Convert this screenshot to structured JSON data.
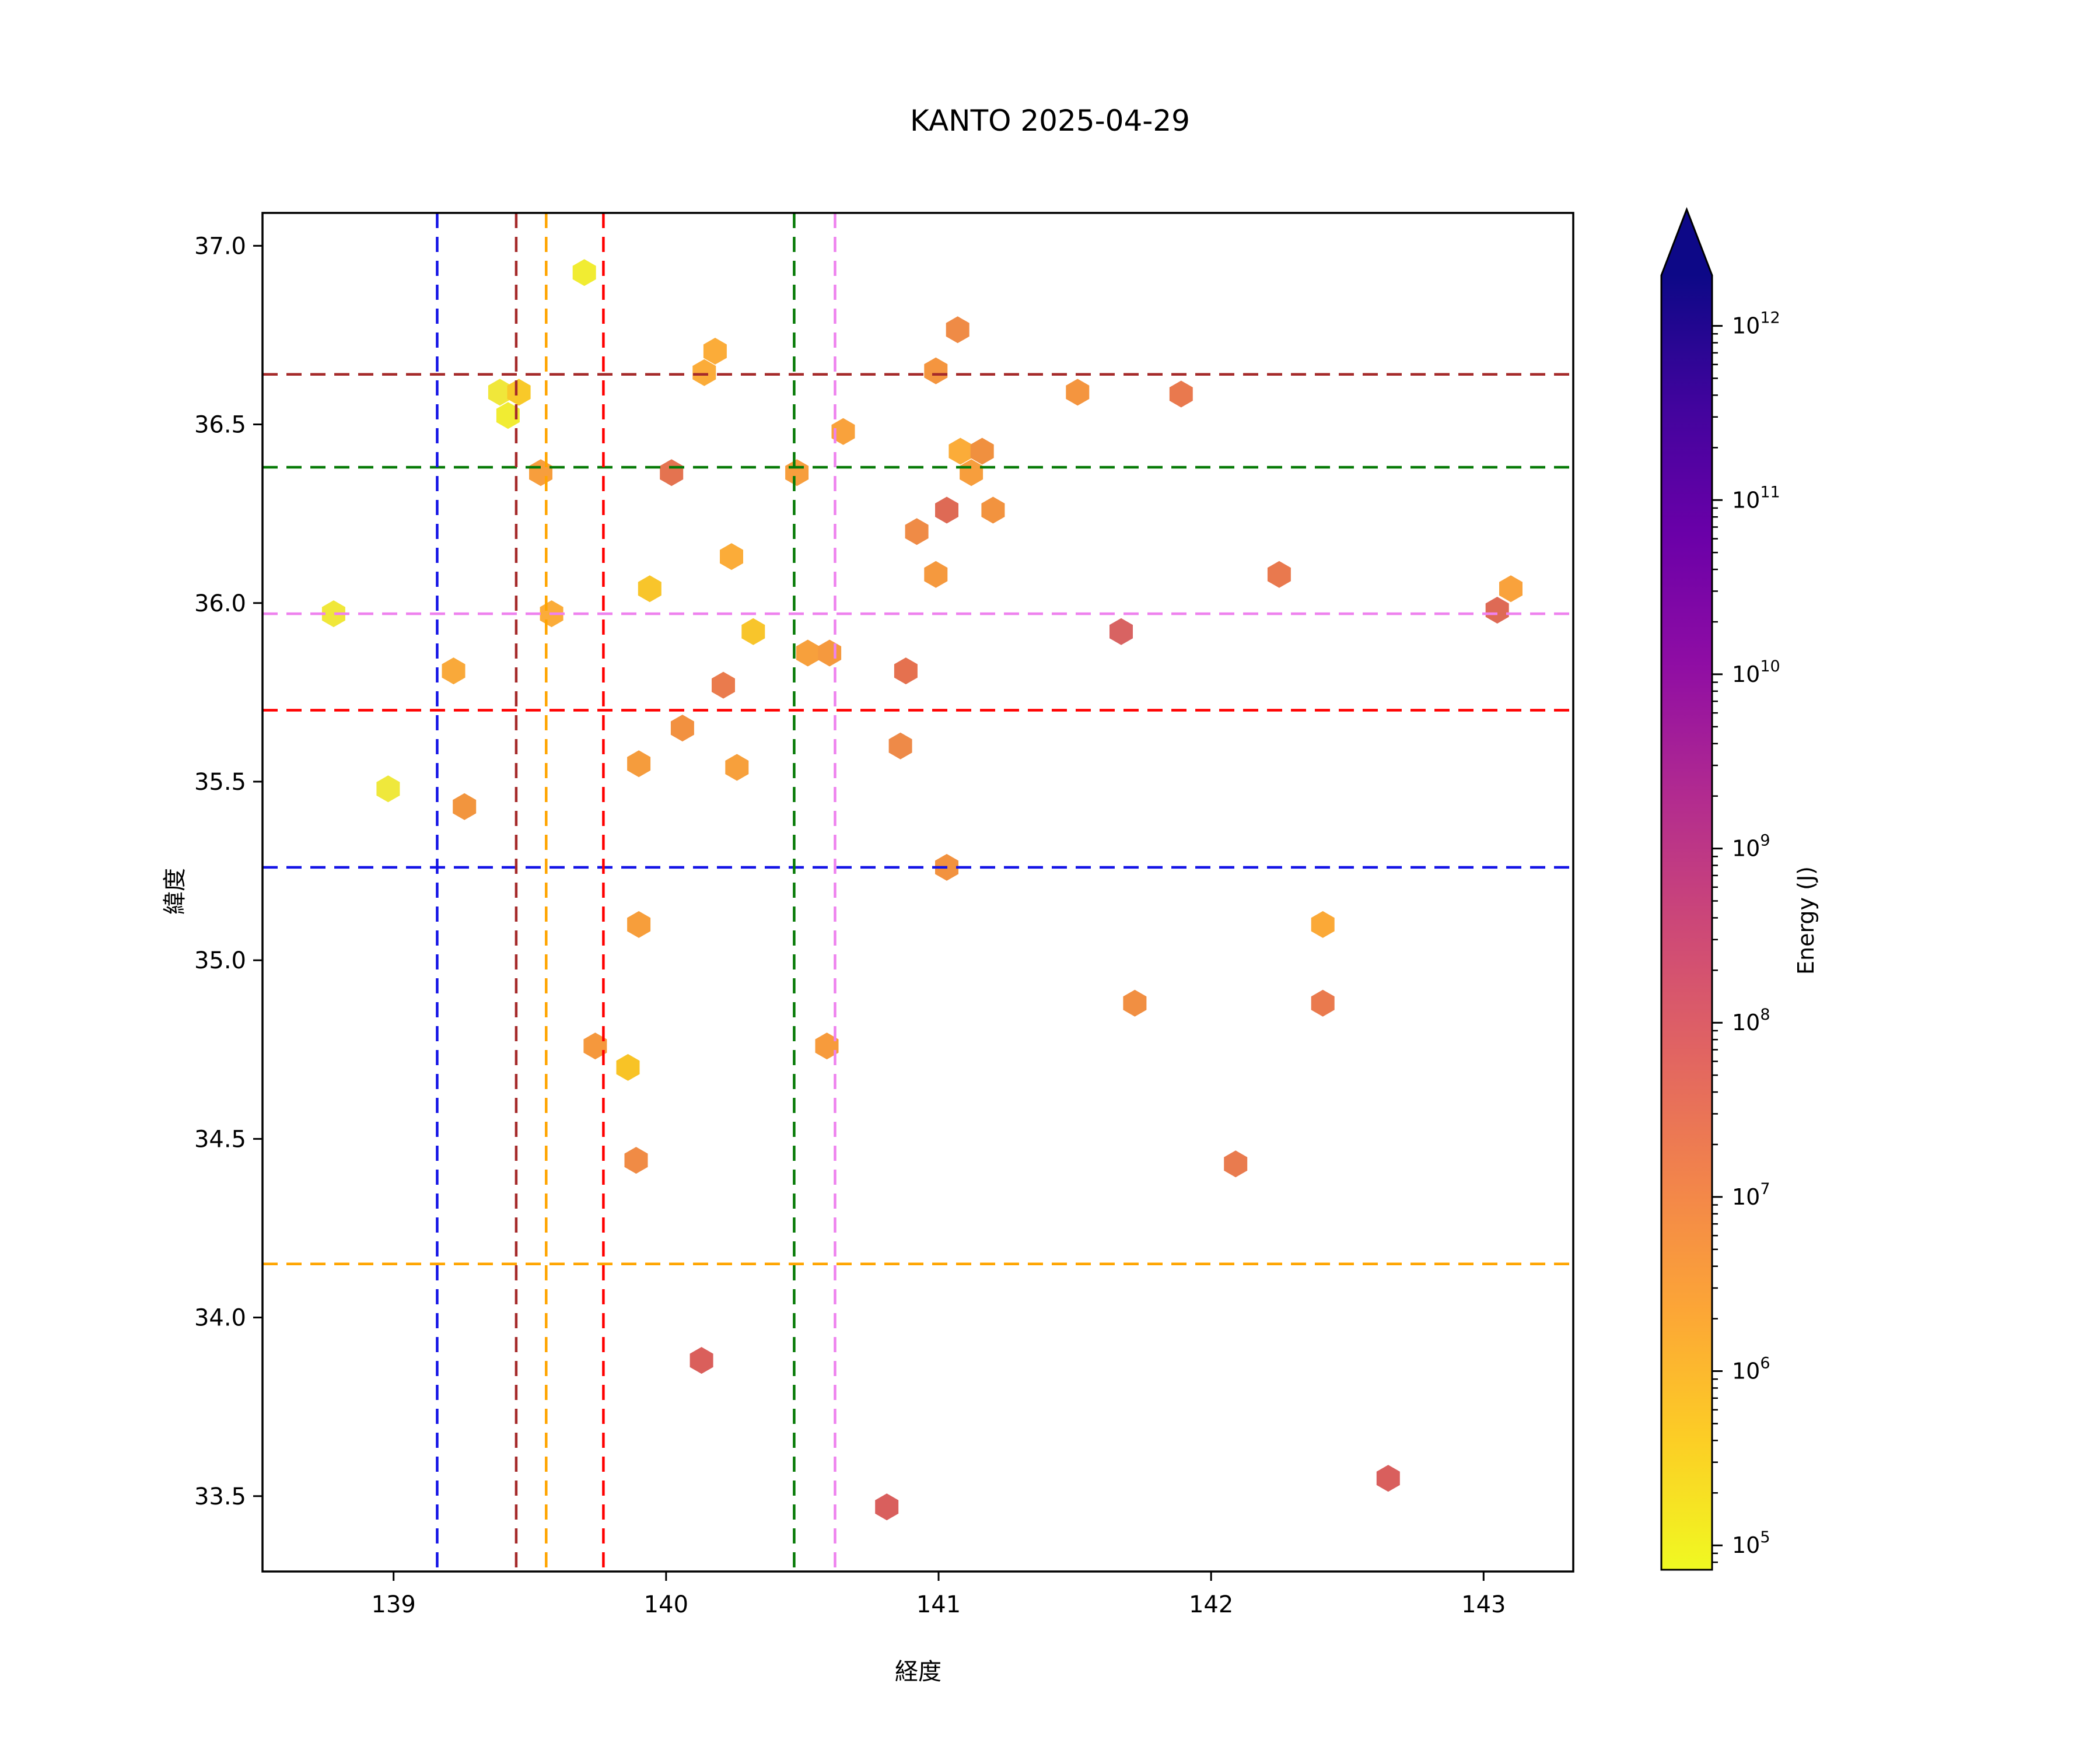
{
  "chart_data": {
    "type": "scatter",
    "marker": "hexagon",
    "title": "KANTO 2025-04-29",
    "xlabel": "経度",
    "ylabel": "緯度",
    "xlim": [
      138.519,
      143.329
    ],
    "ylim": [
      33.289,
      37.092
    ],
    "xticks": [
      139,
      140,
      141,
      142,
      143
    ],
    "yticks": [
      33.5,
      34.0,
      34.5,
      35.0,
      35.5,
      36.0,
      36.5,
      37.0
    ],
    "grid": false,
    "legend": "none",
    "colorbar": {
      "label": "Energy (J)",
      "scale": "log",
      "tick_exponents": [
        5,
        6,
        7,
        8,
        9,
        10,
        11,
        12
      ],
      "log_min": 4.86,
      "log_max": 12.29,
      "extend": "max",
      "over_color": "#0D0887",
      "gradient_bottom_to_top": [
        "#F0F921",
        "#FCCE25",
        "#FCA636",
        "#F2844B",
        "#E16462",
        "#CC4778",
        "#B12A90",
        "#8F0DA4",
        "#6A00A8",
        "#41049D",
        "#0D0887"
      ]
    },
    "reference_lines": {
      "horizontal": [
        {
          "lat": 36.64,
          "color": "#A52A2A"
        },
        {
          "lat": 36.38,
          "color": "#067A06"
        },
        {
          "lat": 35.97,
          "color": "#EE82EE"
        },
        {
          "lat": 35.7,
          "color": "#FF0000"
        },
        {
          "lat": 35.26,
          "color": "#1414E6"
        },
        {
          "lat": 34.15,
          "color": "#FFA500"
        }
      ],
      "vertical": [
        {
          "lon": 139.16,
          "color": "#1414E6"
        },
        {
          "lon": 139.45,
          "color": "#A52A2A"
        },
        {
          "lon": 139.56,
          "color": "#FFA500"
        },
        {
          "lon": 139.77,
          "color": "#FF0000"
        },
        {
          "lon": 140.47,
          "color": "#067A06"
        },
        {
          "lon": 140.62,
          "color": "#EE82EE"
        }
      ]
    },
    "points": [
      {
        "lon": 139.7,
        "lat": 36.925,
        "energy_j": 120000,
        "color": "#F1EC32"
      },
      {
        "lon": 140.14,
        "lat": 36.645,
        "energy_j": 2200000,
        "color": "#FBAC39"
      },
      {
        "lon": 140.18,
        "lat": 36.705,
        "energy_j": 2200000,
        "color": "#FBAC39"
      },
      {
        "lon": 141.07,
        "lat": 36.765,
        "energy_j": 8000000,
        "color": "#EF8B46"
      },
      {
        "lon": 140.99,
        "lat": 36.65,
        "energy_j": 5500000,
        "color": "#F4953F"
      },
      {
        "lon": 139.39,
        "lat": 36.59,
        "energy_j": 160000,
        "color": "#F0E73A"
      },
      {
        "lon": 139.46,
        "lat": 36.59,
        "energy_j": 600000,
        "color": "#F8C929"
      },
      {
        "lon": 139.42,
        "lat": 36.525,
        "energy_j": 120000,
        "color": "#F1EC32"
      },
      {
        "lon": 140.65,
        "lat": 36.48,
        "energy_j": 3000000,
        "color": "#F9A23C"
      },
      {
        "lon": 141.51,
        "lat": 36.59,
        "energy_j": 5500000,
        "color": "#F4953F"
      },
      {
        "lon": 141.89,
        "lat": 36.585,
        "energy_j": 15000000,
        "color": "#E9794E"
      },
      {
        "lon": 139.54,
        "lat": 36.365,
        "energy_j": 3500000,
        "color": "#F79E3D"
      },
      {
        "lon": 140.02,
        "lat": 36.365,
        "energy_j": 20000000,
        "color": "#E47350"
      },
      {
        "lon": 140.48,
        "lat": 36.365,
        "energy_j": 3500000,
        "color": "#F79E3D"
      },
      {
        "lon": 141.08,
        "lat": 36.425,
        "energy_j": 2200000,
        "color": "#FBAC39"
      },
      {
        "lon": 141.16,
        "lat": 36.425,
        "energy_j": 6500000,
        "color": "#F0903F"
      },
      {
        "lon": 141.12,
        "lat": 36.365,
        "energy_j": 3500000,
        "color": "#F79E3D"
      },
      {
        "lon": 141.03,
        "lat": 36.26,
        "energy_j": 40000000,
        "color": "#DE6A55"
      },
      {
        "lon": 141.2,
        "lat": 36.26,
        "energy_j": 6000000,
        "color": "#F2933F"
      },
      {
        "lon": 140.92,
        "lat": 36.2,
        "energy_j": 8000000,
        "color": "#EF8B46"
      },
      {
        "lon": 140.24,
        "lat": 36.13,
        "energy_j": 2200000,
        "color": "#FBAC39"
      },
      {
        "lon": 140.99,
        "lat": 36.08,
        "energy_j": 4500000,
        "color": "#F5993E"
      },
      {
        "lon": 142.25,
        "lat": 36.08,
        "energy_j": 16000000,
        "color": "#E9794E"
      },
      {
        "lon": 143.1,
        "lat": 36.04,
        "energy_j": 3000000,
        "color": "#F9A23C"
      },
      {
        "lon": 143.05,
        "lat": 35.98,
        "energy_j": 50000000,
        "color": "#DE6A55"
      },
      {
        "lon": 138.78,
        "lat": 35.97,
        "energy_j": 150000,
        "color": "#F0E73A"
      },
      {
        "lon": 139.58,
        "lat": 35.97,
        "energy_j": 2200000,
        "color": "#FBAC39"
      },
      {
        "lon": 139.94,
        "lat": 36.04,
        "energy_j": 700000,
        "color": "#F8C52B"
      },
      {
        "lon": 140.32,
        "lat": 35.92,
        "energy_j": 750000,
        "color": "#F8C52B"
      },
      {
        "lon": 140.52,
        "lat": 35.86,
        "energy_j": 3200000,
        "color": "#F7A03C"
      },
      {
        "lon": 140.6,
        "lat": 35.86,
        "energy_j": 4500000,
        "color": "#F5993E"
      },
      {
        "lon": 141.67,
        "lat": 35.92,
        "energy_j": 100000000,
        "color": "#D86362"
      },
      {
        "lon": 140.88,
        "lat": 35.81,
        "energy_j": 22000000,
        "color": "#E5714F"
      },
      {
        "lon": 139.22,
        "lat": 35.81,
        "energy_j": 2500000,
        "color": "#F9A93A"
      },
      {
        "lon": 140.21,
        "lat": 35.77,
        "energy_j": 14000000,
        "color": "#EA7B4D"
      },
      {
        "lon": 140.06,
        "lat": 35.65,
        "energy_j": 6500000,
        "color": "#F29140"
      },
      {
        "lon": 139.9,
        "lat": 35.55,
        "energy_j": 4000000,
        "color": "#F59C3D"
      },
      {
        "lon": 140.26,
        "lat": 35.54,
        "energy_j": 3200000,
        "color": "#F7A03C"
      },
      {
        "lon": 138.98,
        "lat": 35.48,
        "energy_j": 120000,
        "color": "#EFE83C"
      },
      {
        "lon": 139.26,
        "lat": 35.43,
        "energy_j": 5500000,
        "color": "#F2953E"
      },
      {
        "lon": 140.86,
        "lat": 35.6,
        "energy_j": 9000000,
        "color": "#EE8A48"
      },
      {
        "lon": 141.03,
        "lat": 35.26,
        "energy_j": 6000000,
        "color": "#F2923F"
      },
      {
        "lon": 139.9,
        "lat": 35.1,
        "energy_j": 3500000,
        "color": "#F79E3B"
      },
      {
        "lon": 139.74,
        "lat": 34.76,
        "energy_j": 4500000,
        "color": "#F5983D"
      },
      {
        "lon": 139.86,
        "lat": 34.7,
        "energy_j": 800000,
        "color": "#F8C326"
      },
      {
        "lon": 140.59,
        "lat": 34.76,
        "energy_j": 4000000,
        "color": "#F79B3C"
      },
      {
        "lon": 141.72,
        "lat": 34.88,
        "energy_j": 7000000,
        "color": "#F18F42"
      },
      {
        "lon": 142.41,
        "lat": 35.1,
        "energy_j": 2500000,
        "color": "#FBA937"
      },
      {
        "lon": 142.41,
        "lat": 34.88,
        "energy_j": 15000000,
        "color": "#EA7A4E"
      },
      {
        "lon": 142.09,
        "lat": 34.43,
        "energy_j": 15000000,
        "color": "#E97B4E"
      },
      {
        "lon": 139.89,
        "lat": 34.44,
        "energy_j": 8500000,
        "color": "#F08B45"
      },
      {
        "lon": 140.13,
        "lat": 33.88,
        "energy_j": 110000000,
        "color": "#DA5F5B"
      },
      {
        "lon": 140.81,
        "lat": 33.47,
        "energy_j": 110000000,
        "color": "#D95F5D"
      },
      {
        "lon": 142.65,
        "lat": 33.55,
        "energy_j": 110000000,
        "color": "#D95F5D"
      }
    ]
  }
}
